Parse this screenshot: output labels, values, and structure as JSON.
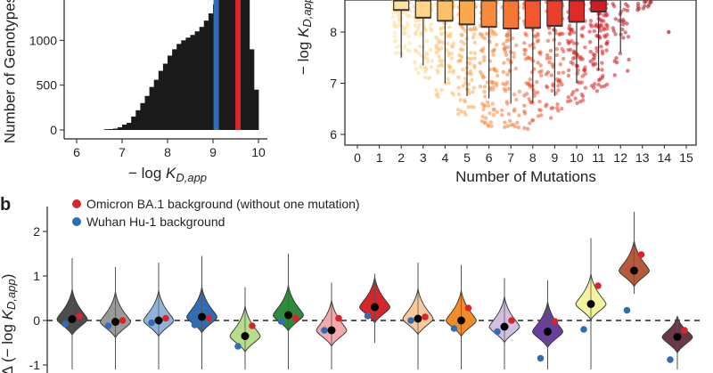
{
  "chart_data": [
    {
      "type": "bar",
      "panel": "a",
      "xlabel": "−log K_D,app",
      "ylabel": "Number of Genotypes",
      "xlim": [
        6,
        10.3
      ],
      "ylim": [
        0,
        1450
      ],
      "x_ticks": [
        "6",
        "7",
        "8",
        "9",
        "10"
      ],
      "y_ticks": [
        "0",
        "500",
        "1000"
      ],
      "bins": [
        {
          "x": 6.6,
          "v": 8
        },
        {
          "x": 6.7,
          "v": 10
        },
        {
          "x": 6.8,
          "v": 15
        },
        {
          "x": 6.9,
          "v": 30
        },
        {
          "x": 7.0,
          "v": 60
        },
        {
          "x": 7.1,
          "v": 80
        },
        {
          "x": 7.2,
          "v": 150
        },
        {
          "x": 7.3,
          "v": 220
        },
        {
          "x": 7.4,
          "v": 300
        },
        {
          "x": 7.5,
          "v": 380
        },
        {
          "x": 7.6,
          "v": 480
        },
        {
          "x": 7.7,
          "v": 560
        },
        {
          "x": 7.8,
          "v": 660
        },
        {
          "x": 7.9,
          "v": 740
        },
        {
          "x": 8.0,
          "v": 830
        },
        {
          "x": 8.1,
          "v": 900
        },
        {
          "x": 8.2,
          "v": 960
        },
        {
          "x": 8.3,
          "v": 1000
        },
        {
          "x": 8.4,
          "v": 1030
        },
        {
          "x": 8.5,
          "v": 1060
        },
        {
          "x": 8.6,
          "v": 1100
        },
        {
          "x": 8.7,
          "v": 1150
        },
        {
          "x": 8.8,
          "v": 1220
        },
        {
          "x": 8.9,
          "v": 1300
        },
        {
          "x": 9.0,
          "v": 1400
        },
        {
          "x": 9.1,
          "v": 1450
        },
        {
          "x": 9.2,
          "v": 1450
        },
        {
          "x": 9.3,
          "v": 1450
        },
        {
          "x": 9.4,
          "v": 1450
        },
        {
          "x": 9.5,
          "v": 1450
        },
        {
          "x": 9.6,
          "v": 1450
        },
        {
          "x": 9.7,
          "v": 1450
        },
        {
          "x": 9.8,
          "v": 900
        },
        {
          "x": 9.9,
          "v": 450
        }
      ],
      "vlines": [
        {
          "x": 9.07,
          "color": "#2f6eb5"
        },
        {
          "x": 9.55,
          "color": "#d7262b"
        }
      ]
    },
    {
      "type": "scatter",
      "xlabel": "Number of Mutations",
      "ylabel": "−log K_D,app",
      "xlim": [
        -0.5,
        15.5
      ],
      "ylim": [
        5.8,
        8.8
      ],
      "x_ticks": [
        "0",
        "1",
        "2",
        "3",
        "4",
        "5",
        "6",
        "7",
        "8",
        "9",
        "10",
        "11",
        "12",
        "13",
        "14",
        "15"
      ],
      "y_ticks": [
        "6",
        "7",
        "8"
      ],
      "groups": [
        {
          "x": 2,
          "q3": 8.9,
          "median": 8.43,
          "whisker_low": 7.5,
          "cloud_min": 7.5,
          "color": "#fce3a3"
        },
        {
          "x": 3,
          "q3": 8.9,
          "median": 8.28,
          "whisker_low": 7.35,
          "cloud_min": 7.0,
          "color": "#fdd58b"
        },
        {
          "x": 4,
          "q3": 8.9,
          "median": 8.22,
          "whisker_low": 7.0,
          "cloud_min": 6.7,
          "color": "#fdc06a"
        },
        {
          "x": 5,
          "q3": 8.9,
          "median": 8.15,
          "whisker_low": 6.75,
          "cloud_min": 6.35,
          "color": "#fca94e"
        },
        {
          "x": 6,
          "q3": 8.9,
          "median": 8.1,
          "whisker_low": 6.7,
          "cloud_min": 6.1,
          "color": "#f98b3a"
        },
        {
          "x": 7,
          "q3": 8.9,
          "median": 8.07,
          "whisker_low": 6.6,
          "cloud_min": 6.1,
          "color": "#f67634"
        },
        {
          "x": 8,
          "q3": 8.9,
          "median": 8.08,
          "whisker_low": 6.62,
          "cloud_min": 6.1,
          "color": "#f2572e"
        },
        {
          "x": 9,
          "q3": 8.9,
          "median": 8.12,
          "whisker_low": 6.75,
          "cloud_min": 6.3,
          "color": "#ea3f2b"
        },
        {
          "x": 10,
          "q3": 8.9,
          "median": 8.2,
          "whisker_low": 7.0,
          "cloud_min": 6.6,
          "color": "#de2b27"
        },
        {
          "x": 11,
          "q3": 8.9,
          "median": 8.4,
          "whisker_low": 7.25,
          "cloud_min": 6.8,
          "color": "#d11c22"
        },
        {
          "x": 12,
          "q3": null,
          "median": null,
          "whisker_low": 7.6,
          "cloud_min": 7.1,
          "color": "#b7141b"
        },
        {
          "x": 13,
          "q3": null,
          "median": null,
          "whisker_low": null,
          "cloud_min": 8.4,
          "color": "#a31218"
        }
      ],
      "outliers": [
        {
          "x": 14.2,
          "y": 8.0
        }
      ]
    },
    {
      "type": "violin",
      "panel": "b",
      "ylabel": "Δ (−log K_D,app)",
      "ylim": [
        -1.1,
        2.3
      ],
      "y_ticks": [
        "-1",
        "0",
        "1",
        "2"
      ],
      "legend": [
        {
          "label": "Omicron BA.1 background (without one mutation)",
          "color": "#d7262b"
        },
        {
          "label": "Wuhan Hu-1 background",
          "color": "#2f6eb5"
        }
      ],
      "reference_line": 0,
      "violins": [
        {
          "mean": 0.03,
          "top": 1.4,
          "bottom": -1.1,
          "color": "#4d4d4d",
          "omicron": 0.1,
          "wuhan": -0.08
        },
        {
          "mean": -0.03,
          "top": 1.2,
          "bottom": -1.1,
          "color": "#9a9a9a",
          "omicron": 0.0,
          "wuhan": -0.12
        },
        {
          "mean": 0.0,
          "top": 1.3,
          "bottom": -1.1,
          "color": "#8fb3d9",
          "omicron": 0.05,
          "wuhan": -0.05
        },
        {
          "mean": 0.08,
          "top": 1.45,
          "bottom": -1.1,
          "color": "#2f6eb5",
          "omicron": 0.05,
          "wuhan": -0.1
        },
        {
          "mean": -0.35,
          "top": 0.75,
          "bottom": -1.1,
          "color": "#b7dd8a",
          "omicron": -0.12,
          "wuhan": -0.58
        },
        {
          "mean": 0.12,
          "top": 1.5,
          "bottom": -1.1,
          "color": "#2e8b3a",
          "omicron": 0.05,
          "wuhan": -0.02
        },
        {
          "mean": -0.22,
          "top": 0.85,
          "bottom": -1.1,
          "color": "#f4a9ad",
          "omicron": 0.05,
          "wuhan": -0.22
        },
        {
          "mean": 0.3,
          "top": 1.05,
          "bottom": -0.5,
          "color": "#d7262b",
          "omicron": 0.35,
          "wuhan": 0.1
        },
        {
          "mean": 0.04,
          "top": 1.3,
          "bottom": -1.1,
          "color": "#f8c99a",
          "omicron": 0.08,
          "wuhan": 0.0
        },
        {
          "mean": 0.0,
          "top": 1.25,
          "bottom": -1.1,
          "color": "#f28c28",
          "omicron": 0.28,
          "wuhan": -0.18
        },
        {
          "mean": -0.14,
          "top": 0.95,
          "bottom": -1.1,
          "color": "#d2bfe0",
          "omicron": 0.0,
          "wuhan": -0.25
        },
        {
          "mean": -0.25,
          "top": 0.9,
          "bottom": -1.1,
          "color": "#6b3fa0",
          "omicron": -0.02,
          "wuhan": -0.85
        },
        {
          "mean": 0.37,
          "top": 1.85,
          "bottom": -1.1,
          "color": "#f5f3a0",
          "omicron": 0.78,
          "wuhan": -0.2
        },
        {
          "mean": 1.12,
          "top": 2.45,
          "bottom": 0.6,
          "color": "#b55a3a",
          "omicron": 1.48,
          "wuhan": 0.23
        },
        {
          "mean": -0.37,
          "top": 0.1,
          "bottom": -1.1,
          "color": "#6b3848",
          "omicron": -0.22,
          "wuhan": -0.88
        }
      ]
    }
  ],
  "labels": {
    "panel_b": "b",
    "hist_xlabel_prefix": "− log ",
    "hist_xlabel_k": "K",
    "hist_xlabel_sub": "D,app",
    "hist_ylabel": "Number of Genotypes",
    "scatter_xlabel": "Number of Mutations",
    "scatter_ylabel_prefix": "− log ",
    "scatter_ylabel_k": "K",
    "scatter_ylabel_sub": "D,app",
    "violin_ylabel_delta": "Δ",
    "violin_ylabel_inner_prefix": "(− log ",
    "violin_ylabel_k": "K",
    "violin_ylabel_sub": "D,app",
    "violin_ylabel_close": ")",
    "legend_omicron": "Omicron BA.1 background (without one mutation)",
    "legend_wuhan": "Wuhan Hu-1 background"
  }
}
